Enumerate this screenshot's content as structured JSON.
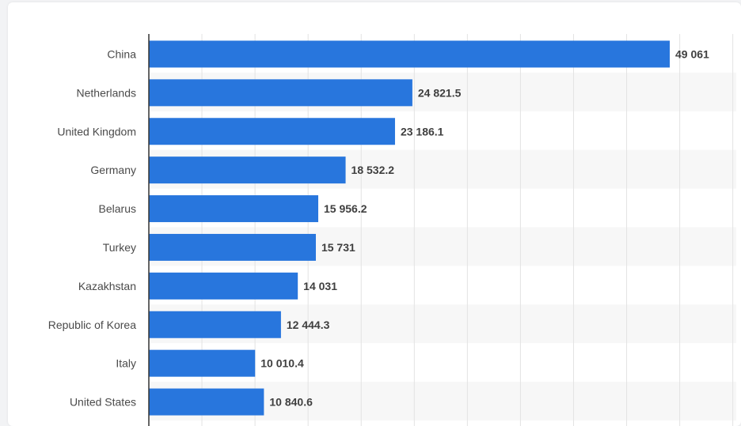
{
  "chart_data": {
    "type": "bar",
    "orientation": "horizontal",
    "categories": [
      "China",
      "Netherlands",
      "United Kingdom",
      "Germany",
      "Belarus",
      "Turkey",
      "Kazakhstan",
      "Republic of Korea",
      "Italy",
      "United States"
    ],
    "values": [
      49061,
      24821.5,
      23186.1,
      18532.2,
      15956.2,
      15731,
      14031,
      12444.3,
      10010.4,
      10840.6
    ],
    "value_labels": [
      "49 061",
      "24 821.5",
      "23 186.1",
      "18 532.2",
      "15 956.2",
      "15 731",
      "14 031",
      "12 444.3",
      "10 010.4",
      "10 840.6"
    ],
    "xlim": [
      0,
      55000
    ],
    "grid": true,
    "bar_color": "#2876dd",
    "title": "",
    "xlabel": "",
    "ylabel": ""
  }
}
